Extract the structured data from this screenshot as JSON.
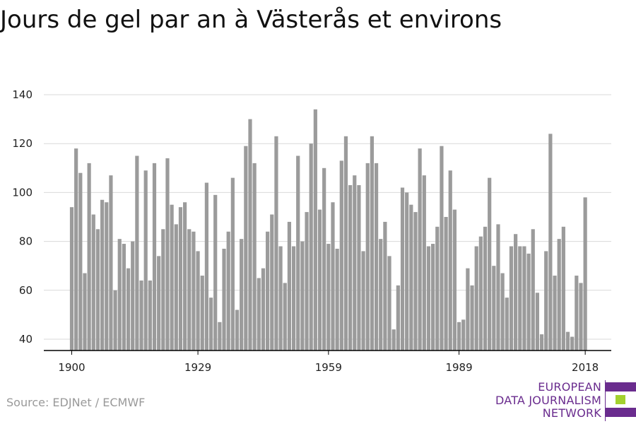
{
  "chart_data": {
    "type": "bar",
    "title": "Jours de gel par an à Västerås et environs",
    "xlabel": "",
    "ylabel": "",
    "ylim": [
      35,
      145
    ],
    "yticks": [
      40,
      60,
      80,
      100,
      120,
      140
    ],
    "xticks": [
      "1900",
      "1929",
      "1959",
      "1989",
      "2018"
    ],
    "grid": true,
    "bar_color": "#9b9b9b",
    "x_start": 1900,
    "values": [
      94,
      118,
      108,
      67,
      112,
      91,
      85,
      97,
      96,
      107,
      60,
      81,
      79,
      69,
      80,
      115,
      64,
      109,
      64,
      112,
      74,
      85,
      114,
      95,
      87,
      94,
      96,
      85,
      84,
      76,
      66,
      104,
      57,
      99,
      47,
      77,
      84,
      106,
      52,
      81,
      119,
      130,
      112,
      65,
      69,
      84,
      91,
      123,
      78,
      63,
      88,
      78,
      115,
      80,
      92,
      120,
      134,
      93,
      110,
      79,
      96,
      77,
      113,
      123,
      103,
      107,
      103,
      76,
      112,
      123,
      112,
      81,
      88,
      74,
      44,
      62,
      102,
      100,
      95,
      92,
      118,
      107,
      78,
      79,
      86,
      119,
      90,
      109,
      93,
      47,
      48,
      69,
      62,
      78,
      82,
      86,
      106,
      70,
      87,
      67,
      57,
      78,
      83,
      78,
      78,
      75,
      85,
      59,
      42,
      76,
      124,
      66,
      81,
      86,
      43,
      41,
      66,
      63,
      98
    ]
  },
  "source": "Source: EDJNet / ECMWF",
  "logo": {
    "lines": [
      "EUROPEAN",
      "DATA JOURNALISM",
      "NETWORK"
    ],
    "colors": {
      "purple": "#6a2c8e",
      "green": "#a3d12e"
    }
  }
}
